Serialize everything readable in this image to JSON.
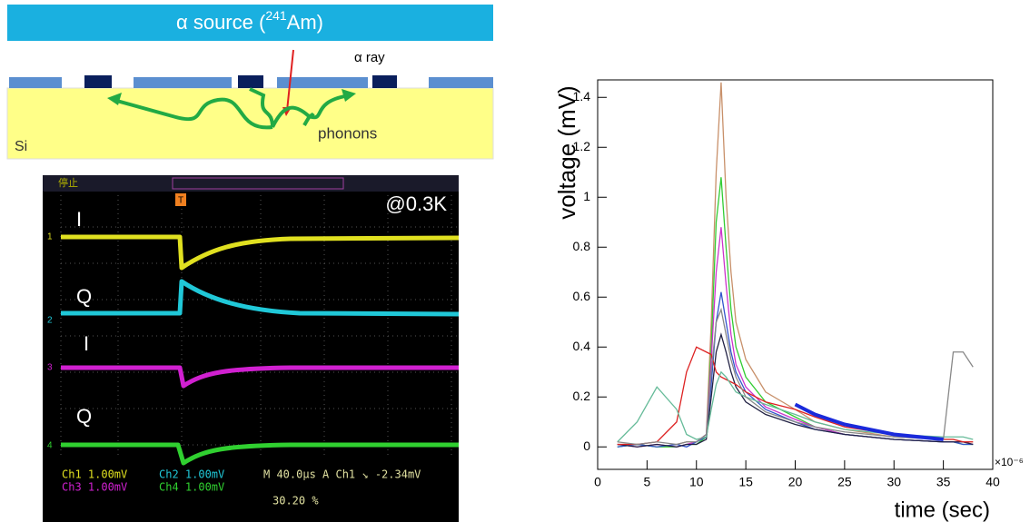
{
  "diagram": {
    "source_label": {
      "prefix": "α source (",
      "sup": "241",
      "suffix": "Am)"
    },
    "ray_label": "α ray",
    "phonons_label": "phonons",
    "substrate_label": "Si"
  },
  "scope": {
    "status_top": "停止",
    "temperature": "@0.3K",
    "trigger_marker": "T",
    "traces": [
      {
        "label": "I",
        "channel": "1"
      },
      {
        "label": "Q",
        "channel": "2"
      },
      {
        "label": "I",
        "channel": "3"
      },
      {
        "label": "Q",
        "channel": "4"
      }
    ],
    "readout": {
      "ch1": "Ch1  1.00mV",
      "ch2": "Ch2  1.00mV",
      "time": "M 40.0µs  A  Ch1  ↘ -2.34mV",
      "ch3": "Ch3  1.00mV",
      "ch4": "Ch4  1.00mV",
      "trigger_pos": "30.20 %"
    }
  },
  "chart_data": {
    "type": "line",
    "y_label": "voltage (mV)",
    "x_label": "time (sec)",
    "x_multiplier": "×10⁻⁶",
    "xlim": [
      0,
      40
    ],
    "ylim": [
      -0.09,
      1.47
    ],
    "xticks": [
      0,
      5,
      10,
      15,
      20,
      25,
      30,
      35,
      40
    ],
    "yticks": [
      0,
      0.2,
      0.4,
      0.6,
      0.8,
      1,
      1.2,
      1.4
    ],
    "x": [
      2,
      4,
      6,
      8,
      9,
      10,
      11,
      11.5,
      12,
      12.5,
      13,
      13.5,
      14,
      15,
      17,
      20,
      22,
      25,
      30,
      35,
      36,
      37,
      38
    ],
    "series": [
      {
        "color": "#c8906a",
        "values": [
          0.01,
          0.01,
          0,
          0.01,
          0.02,
          0.02,
          0.05,
          0.5,
          1.1,
          1.46,
          1.0,
          0.7,
          0.5,
          0.35,
          0.22,
          0.15,
          0.1,
          0.07,
          0.04,
          0.03,
          0.03,
          0.02,
          0.02
        ]
      },
      {
        "color": "#33cc33",
        "values": [
          0,
          0.01,
          0,
          0,
          0.01,
          0.01,
          0.04,
          0.4,
          0.9,
          1.08,
          0.8,
          0.55,
          0.4,
          0.28,
          0.18,
          0.12,
          0.08,
          0.05,
          0.03,
          0.02,
          0.02,
          0.01,
          0.01
        ]
      },
      {
        "color": "#cc33cc",
        "values": [
          0.01,
          0,
          0.01,
          0,
          0.01,
          0.02,
          0.05,
          0.35,
          0.7,
          0.88,
          0.65,
          0.45,
          0.33,
          0.24,
          0.16,
          0.11,
          0.08,
          0.05,
          0.03,
          0.02,
          0.02,
          0.02,
          0.01
        ]
      },
      {
        "color": "#3355cc",
        "values": [
          0,
          0.01,
          0,
          0.01,
          0,
          0.02,
          0.04,
          0.25,
          0.5,
          0.62,
          0.5,
          0.38,
          0.3,
          0.22,
          0.15,
          0.1,
          0.07,
          0.05,
          0.03,
          0.02,
          0.02,
          0.01,
          0.01
        ]
      },
      {
        "color": "#222244",
        "values": [
          0.01,
          0,
          0.01,
          0,
          0.01,
          0.01,
          0.03,
          0.2,
          0.38,
          0.45,
          0.38,
          0.3,
          0.24,
          0.18,
          0.13,
          0.09,
          0.07,
          0.05,
          0.03,
          0.02,
          0.02,
          0.02,
          0.01
        ]
      },
      {
        "color": "#dd2222",
        "values": [
          0.01,
          0.01,
          0.02,
          0.1,
          0.3,
          0.4,
          0.38,
          0.37,
          0.3,
          0.28,
          0.27,
          0.26,
          0.25,
          0.22,
          0.18,
          0.15,
          0.12,
          0.08,
          0.05,
          0.03,
          0.03,
          0.02,
          0.02
        ]
      },
      {
        "color": "#66bb99",
        "values": [
          0.02,
          0.1,
          0.24,
          0.15,
          0.05,
          0.03,
          0.04,
          0.15,
          0.25,
          0.3,
          0.28,
          0.25,
          0.22,
          0.2,
          0.17,
          0.13,
          0.1,
          0.07,
          0.05,
          0.04,
          0.04,
          0.04,
          0.03
        ]
      },
      {
        "color": "#888888",
        "values": [
          0.02,
          0.01,
          0.02,
          0.01,
          0.02,
          0.02,
          0.05,
          0.3,
          0.5,
          0.55,
          0.45,
          0.35,
          0.28,
          0.2,
          0.14,
          0.1,
          0.08,
          0.06,
          0.04,
          0.03,
          0.38,
          0.38,
          0.32
        ]
      },
      {
        "color": "#1a2adb",
        "values": [
          null,
          null,
          null,
          null,
          null,
          null,
          null,
          null,
          null,
          null,
          null,
          null,
          null,
          null,
          null,
          0.17,
          0.13,
          0.09,
          0.05,
          0.03,
          null,
          null,
          null
        ]
      }
    ]
  }
}
